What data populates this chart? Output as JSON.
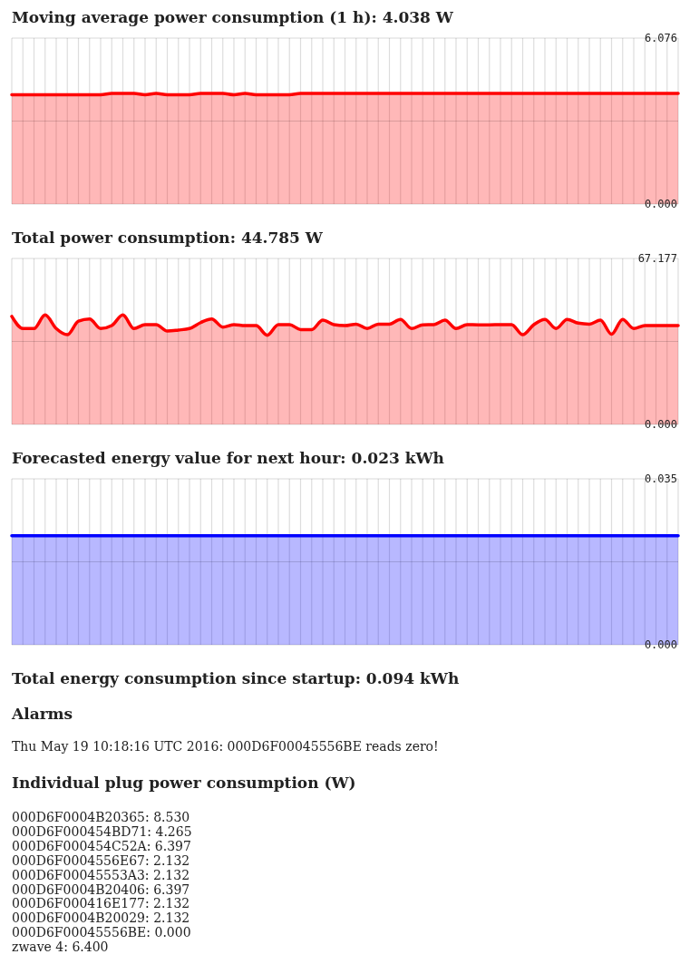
{
  "chart_data": [
    {
      "type": "area",
      "title": "Moving average power consumption (1 h): 4.038 W",
      "categories": [
        null,
        null,
        null,
        null,
        null,
        null,
        null,
        null,
        null,
        null,
        null,
        null,
        null,
        null,
        null,
        null,
        null,
        null,
        null,
        null,
        null,
        null,
        null,
        null,
        null,
        null,
        null,
        null,
        null,
        null,
        null,
        null,
        null,
        null,
        null,
        null,
        null,
        null,
        null,
        null,
        null,
        null,
        null,
        null,
        null,
        null,
        null,
        null,
        null,
        null,
        null,
        null,
        null,
        null,
        null,
        null,
        null,
        null,
        null,
        null,
        null
      ],
      "series": [
        {
          "color": "#ff0000",
          "values": [
            4.0,
            4.0,
            4.0,
            4.0,
            4.0,
            4.0,
            4.0,
            4.0,
            4.0,
            4.05,
            4.05,
            4.05,
            4.0,
            4.05,
            4.0,
            4.0,
            4.0,
            4.05,
            4.05,
            4.05,
            4.0,
            4.05,
            4.0,
            4.0,
            4.0,
            4.0,
            4.05,
            4.05,
            4.05,
            4.05,
            4.05,
            4.05,
            4.05,
            4.05,
            4.05,
            4.05,
            4.05,
            4.05,
            4.05,
            4.05,
            4.05,
            4.05,
            4.05,
            4.05,
            4.05,
            4.05,
            4.05,
            4.05,
            4.05,
            4.05,
            4.05,
            4.05,
            4.05,
            4.05,
            4.05,
            4.05,
            4.05,
            4.05,
            4.05,
            4.05,
            4.05
          ]
        }
      ],
      "ylim": [
        0,
        6.076
      ],
      "yticks": [
        {
          "value": 0,
          "label": "0.000"
        },
        {
          "value": 6.076,
          "label": "6.076"
        }
      ],
      "ref_lines": [
        {
          "axis": "y",
          "value": 3.038
        }
      ],
      "grid": true,
      "marker": "none"
    },
    {
      "type": "area",
      "title": "Total power consumption: 44.785 W",
      "categories": [
        null,
        null,
        null,
        null,
        null,
        null,
        null,
        null,
        null,
        null,
        null,
        null,
        null,
        null,
        null,
        null,
        null,
        null,
        null,
        null,
        null,
        null,
        null,
        null,
        null,
        null,
        null,
        null,
        null,
        null,
        null,
        null,
        null,
        null,
        null,
        null,
        null,
        null,
        null,
        null,
        null,
        null,
        null,
        null,
        null,
        null,
        null,
        null,
        null,
        null,
        null,
        null,
        null,
        null,
        null,
        null,
        null,
        null,
        null,
        null,
        null
      ],
      "series": [
        {
          "color": "#ff0000",
          "values": [
            43.7,
            38.8,
            38.8,
            44.3,
            38.8,
            36.3,
            41.8,
            42.7,
            38.8,
            40.0,
            44.3,
            38.8,
            40.4,
            40.4,
            37.8,
            38.2,
            38.8,
            41.2,
            42.7,
            39.4,
            40.4,
            40.0,
            40.0,
            36.1,
            40.4,
            40.4,
            38.4,
            38.4,
            42.2,
            40.4,
            40.0,
            40.6,
            38.8,
            40.6,
            40.6,
            42.5,
            38.8,
            40.3,
            40.4,
            42.2,
            38.8,
            40.4,
            40.3,
            40.3,
            40.4,
            40.4,
            36.3,
            40.4,
            42.5,
            38.8,
            42.5,
            41.0,
            40.6,
            42.2,
            36.5,
            42.5,
            38.8,
            40.0,
            40.0,
            40.0,
            40.0
          ]
        }
      ],
      "ylim": [
        0,
        67.177
      ],
      "yticks": [
        {
          "value": 0,
          "label": "0.000"
        },
        {
          "value": 67.177,
          "label": "67.177"
        }
      ],
      "ref_lines": [
        {
          "axis": "y",
          "value": 33.589
        }
      ],
      "grid": true,
      "marker": "none"
    },
    {
      "type": "area",
      "title": "Forecasted energy value for next hour: 0.023 kWh",
      "categories": [
        null,
        null,
        null,
        null,
        null,
        null,
        null,
        null,
        null,
        null,
        null,
        null,
        null,
        null,
        null,
        null,
        null,
        null,
        null,
        null,
        null,
        null,
        null,
        null,
        null,
        null,
        null,
        null,
        null,
        null,
        null,
        null,
        null,
        null,
        null,
        null,
        null,
        null,
        null,
        null,
        null,
        null,
        null,
        null,
        null,
        null,
        null,
        null,
        null,
        null,
        null,
        null,
        null,
        null,
        null,
        null,
        null,
        null,
        null,
        null,
        null
      ],
      "series": [
        {
          "color": "#0000ff",
          "values": [
            0.023,
            0.023,
            0.023,
            0.023,
            0.023,
            0.023,
            0.023,
            0.023,
            0.023,
            0.023,
            0.023,
            0.023,
            0.023,
            0.023,
            0.023,
            0.023,
            0.023,
            0.023,
            0.023,
            0.023,
            0.023,
            0.023,
            0.023,
            0.023,
            0.023,
            0.023,
            0.023,
            0.023,
            0.023,
            0.023,
            0.023,
            0.023,
            0.023,
            0.023,
            0.023,
            0.023,
            0.023,
            0.023,
            0.023,
            0.023,
            0.023,
            0.023,
            0.023,
            0.023,
            0.023,
            0.023,
            0.023,
            0.023,
            0.023,
            0.023,
            0.023,
            0.023,
            0.023,
            0.023,
            0.023,
            0.023,
            0.023,
            0.023,
            0.023,
            0.023,
            0.023
          ]
        }
      ],
      "ylim": [
        0,
        0.035
      ],
      "yticks": [
        {
          "value": 0,
          "label": "0.000"
        },
        {
          "value": 0.035,
          "label": "0.035"
        }
      ],
      "ref_lines": [
        {
          "axis": "y",
          "value": 0.0175
        }
      ],
      "grid": true,
      "marker": "none"
    },
    {
      "type": "other",
      "title": "Total energy consumption since startup: 0.094 kWh"
    },
    {
      "type": "other",
      "title": "Alarms",
      "annotations": [
        "Thu May 19 10:18:16 UTC 2016: 000D6F00045556BE reads zero!"
      ]
    },
    {
      "type": "other",
      "title": "Individual plug power consumption (W)",
      "annotations": [
        "000D6F0004B20365: 8.530",
        "000D6F000454BD71: 4.265",
        "000D6F000454C52A: 6.397",
        "000D6F0004556E67: 2.132",
        "000D6F00045553A3: 2.132",
        "000D6F0004B20406: 6.397",
        "000D6F000416E177: 2.132",
        "000D6F0004B20029: 2.132",
        "000D6F00045556BE: 0.000",
        "zwave 4: 6.400"
      ]
    }
  ]
}
